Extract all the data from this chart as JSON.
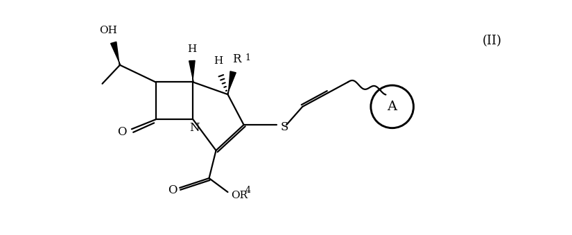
{
  "bg": "#ffffff",
  "lc": "#000000",
  "fig_w": 8.25,
  "fig_h": 3.39,
  "dpi": 100,
  "II_label": "(II)",
  "OH_label": "OH",
  "H1_label": "H",
  "H2_label": "H",
  "R1_label": "R",
  "R1_sup": "1",
  "N_label": "N",
  "O1_label": "O",
  "O2_label": "O",
  "OR4_label": "OR",
  "OR4_sup": "4",
  "S_label": "S",
  "A_label": "A"
}
